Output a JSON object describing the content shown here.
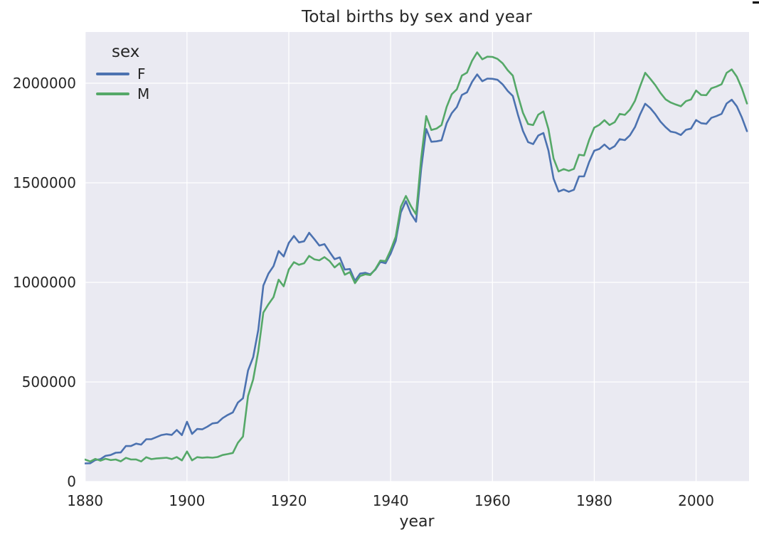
{
  "page": {
    "background": "#ffffff"
  },
  "artifact": {
    "color": "#000000"
  },
  "chart_data": {
    "type": "line",
    "title": "Total births by sex and year",
    "xlabel": "year",
    "ylabel": "",
    "legend": {
      "title": "sex",
      "position": "upper left",
      "entries": [
        "F",
        "M"
      ]
    },
    "xticks": [
      1880,
      1900,
      1920,
      1940,
      1960,
      1980,
      2000
    ],
    "yticks": [
      0,
      500000,
      1000000,
      1500000,
      2000000
    ],
    "xlim": [
      1879.9,
      2010.4
    ],
    "ylim": [
      0,
      2257000
    ],
    "grid": true,
    "style": {
      "plot_background": "#eaeaf2",
      "grid_color": "#ffffff",
      "text_color": "#262626",
      "line_width": 2.6
    },
    "x": [
      1880,
      1881,
      1882,
      1883,
      1884,
      1885,
      1886,
      1887,
      1888,
      1889,
      1890,
      1891,
      1892,
      1893,
      1894,
      1895,
      1896,
      1897,
      1898,
      1899,
      1900,
      1901,
      1902,
      1903,
      1904,
      1905,
      1906,
      1907,
      1908,
      1909,
      1910,
      1911,
      1912,
      1913,
      1914,
      1915,
      1916,
      1917,
      1918,
      1919,
      1920,
      1921,
      1922,
      1923,
      1924,
      1925,
      1926,
      1927,
      1928,
      1929,
      1930,
      1931,
      1932,
      1933,
      1934,
      1935,
      1936,
      1937,
      1938,
      1939,
      1940,
      1941,
      1942,
      1943,
      1944,
      1945,
      1946,
      1947,
      1948,
      1949,
      1950,
      1951,
      1952,
      1953,
      1954,
      1955,
      1956,
      1957,
      1958,
      1959,
      1960,
      1961,
      1962,
      1963,
      1964,
      1965,
      1966,
      1967,
      1968,
      1969,
      1970,
      1971,
      1972,
      1973,
      1974,
      1975,
      1976,
      1977,
      1978,
      1979,
      1980,
      1981,
      1982,
      1983,
      1984,
      1985,
      1986,
      1987,
      1988,
      1989,
      1990,
      1991,
      1992,
      1993,
      1994,
      1995,
      1996,
      1997,
      1998,
      1999,
      2000,
      2001,
      2002,
      2003,
      2004,
      2005,
      2006,
      2007,
      2008,
      2009,
      2010
    ],
    "series": [
      {
        "name": "F",
        "color": "#4c72b0",
        "values": [
          90993,
          91953,
          107847,
          112319,
          129020,
          133055,
          144533,
          145981,
          178622,
          178366,
          190376,
          185481,
          212346,
          212906,
          222920,
          233630,
          237919,
          234200,
          258768,
          233023,
          299828,
          239345,
          264076,
          261971,
          275364,
          291619,
          295300,
          318558,
          334277,
          347191,
          396416,
          418180,
          557939,
          624278,
          761380,
          983824,
          1044249,
          1081280,
          1157585,
          1130149,
          1198214,
          1232845,
          1200796,
          1206487,
          1248904,
          1217316,
          1185077,
          1192216,
          1152642,
          1116232,
          1125521,
          1064227,
          1066952,
          1007477,
          1043919,
          1048282,
          1040224,
          1063765,
          1103263,
          1096159,
          1143356,
          1208299,
          1350963,
          1408186,
          1344327,
          1304486,
          1570165,
          1770000,
          1705871,
          1708000,
          1713000,
          1799000,
          1849000,
          1880000,
          1941000,
          1954000,
          2007000,
          2044000,
          2010000,
          2023000,
          2022000,
          2017000,
          1994000,
          1961000,
          1936000,
          1842000,
          1760000,
          1704000,
          1694000,
          1737000,
          1750000,
          1662000,
          1521000,
          1456000,
          1466000,
          1455000,
          1465000,
          1532000,
          1532000,
          1605000,
          1661000,
          1670000,
          1692000,
          1669000,
          1684000,
          1719000,
          1714000,
          1738000,
          1780000,
          1843000,
          1897000,
          1875000,
          1844000,
          1807000,
          1780000,
          1757000,
          1752000,
          1740000,
          1766000,
          1772000,
          1815000,
          1799000,
          1796000,
          1826000,
          1835000,
          1846000,
          1898000,
          1917000,
          1884000,
          1827000,
          1759000
        ]
      },
      {
        "name": "M",
        "color": "#55a868",
        "values": [
          110491,
          100743,
          113686,
          104627,
          114442,
          107799,
          110784,
          101413,
          118866,
          110690,
          111025,
          101191,
          122037,
          112318,
          115772,
          117398,
          119570,
          112758,
          122693,
          106212,
          150554,
          106471,
          122660,
          119234,
          121750,
          119701,
          123320,
          133159,
          137682,
          143705,
          194216,
          225936,
          429926,
          512482,
          654746,
          848603,
          890142,
          925512,
          1013537,
          980149,
          1064468,
          1101433,
          1088287,
          1096168,
          1132671,
          1115798,
          1110505,
          1126717,
          1107207,
          1074767,
          1096500,
          1038592,
          1051244,
          995891,
          1031847,
          1040568,
          1036822,
          1066681,
          1109533,
          1106363,
          1161480,
          1229159,
          1379560,
          1434000,
          1382528,
          1341868,
          1623000,
          1835000,
          1765000,
          1772000,
          1790000,
          1881000,
          1944000,
          1969000,
          2038000,
          2053000,
          2113000,
          2155000,
          2120000,
          2133000,
          2132000,
          2122000,
          2100000,
          2065000,
          2038000,
          1938000,
          1851000,
          1795000,
          1790000,
          1842000,
          1858000,
          1770000,
          1622000,
          1557000,
          1569000,
          1560000,
          1570000,
          1641000,
          1637000,
          1716000,
          1777000,
          1791000,
          1814000,
          1790000,
          1804000,
          1846000,
          1841000,
          1867000,
          1912000,
          1984000,
          2052000,
          2022000,
          1990000,
          1951000,
          1919000,
          1903000,
          1893000,
          1884000,
          1910000,
          1918000,
          1963000,
          1941000,
          1940000,
          1974000,
          1983000,
          1995000,
          2052000,
          2069000,
          2033000,
          1973000,
          1898000
        ]
      }
    ]
  }
}
